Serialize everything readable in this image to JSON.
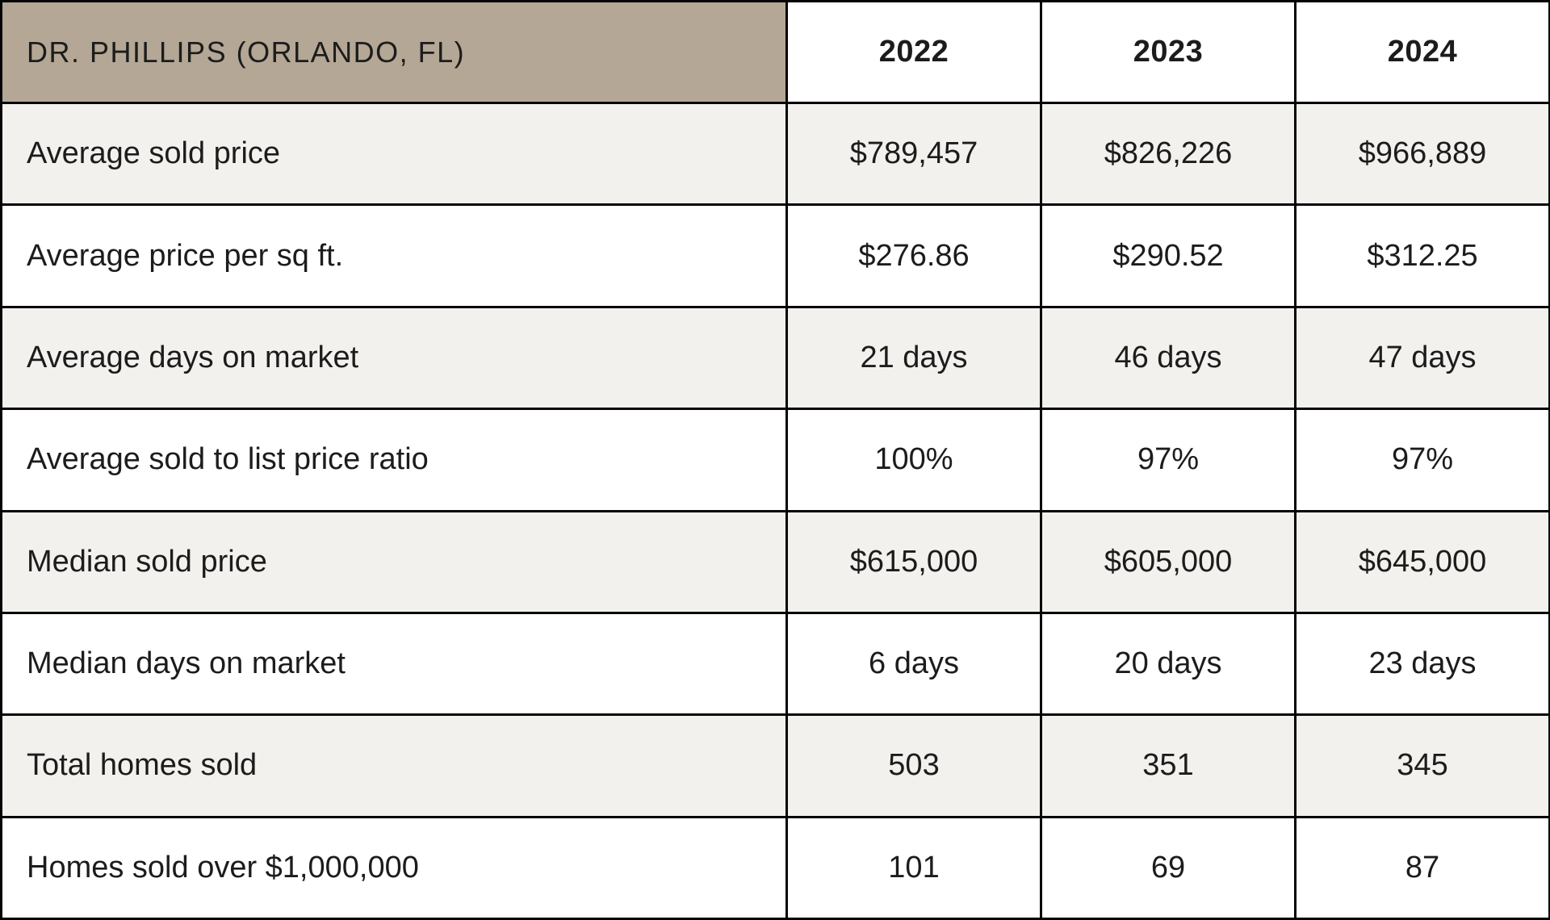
{
  "chart_data": {
    "type": "table",
    "title": "DR. PHILLIPS (ORLANDO, FL)",
    "columns": [
      "2022",
      "2023",
      "2024"
    ],
    "rows": [
      {
        "metric": "Average sold price",
        "values": [
          "$789,457",
          "$826,226",
          "$966,889"
        ]
      },
      {
        "metric": "Average price per sq ft.",
        "values": [
          "$276.86",
          "$290.52",
          "$312.25"
        ]
      },
      {
        "metric": "Average days on market",
        "values": [
          "21 days",
          "46 days",
          "47 days"
        ]
      },
      {
        "metric": "Average sold to list price ratio",
        "values": [
          "100%",
          "97%",
          "97%"
        ]
      },
      {
        "metric": "Median sold price",
        "values": [
          "$615,000",
          "$605,000",
          "$645,000"
        ]
      },
      {
        "metric": "Median days on market",
        "values": [
          "6 days",
          "20 days",
          "23 days"
        ]
      },
      {
        "metric": "Total homes sold",
        "values": [
          "503",
          "351",
          "345"
        ]
      },
      {
        "metric": "Homes sold over $1,000,000",
        "values": [
          "101",
          "69",
          "87"
        ]
      }
    ],
    "layout_hints": {
      "stripe_pattern": "odd rows shaded",
      "label_alignment": "left",
      "value_alignment": "center"
    }
  },
  "colors": {
    "header_bg": "#b4a795",
    "stripe_bg": "#f2f1ee",
    "white_bg": "#ffffff",
    "border": "#040404",
    "text": "#1c1c1c"
  }
}
